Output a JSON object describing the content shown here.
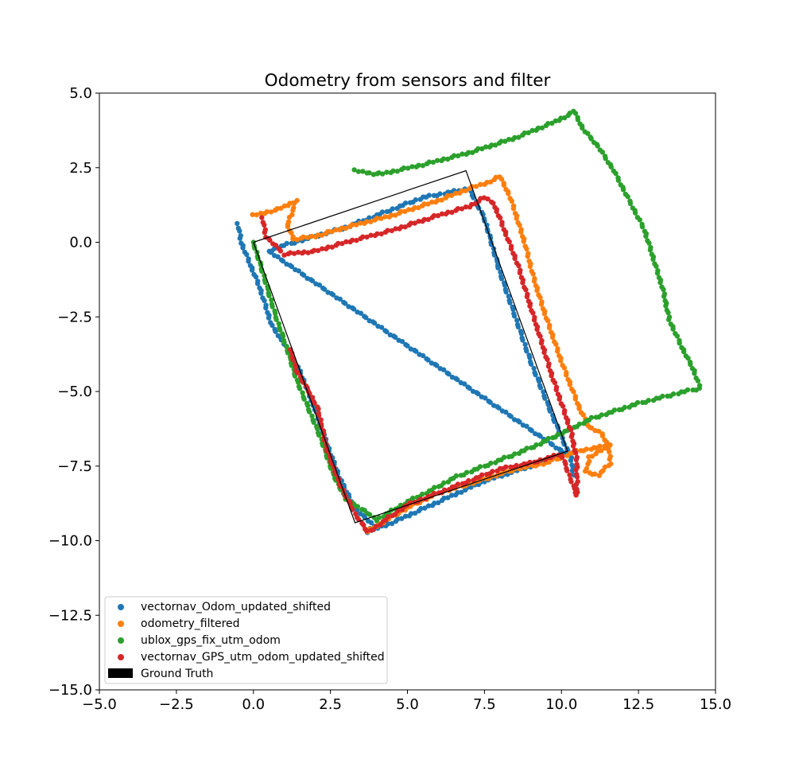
{
  "chart_data": {
    "type": "scatter",
    "title": "Odometry from sensors and filter",
    "xlabel": "",
    "ylabel": "",
    "xlim": [
      -5.0,
      15.0
    ],
    "ylim": [
      -15.0,
      5.0
    ],
    "x_ticks": [
      "−5.0",
      "−2.5",
      "0.0",
      "2.5",
      "5.0",
      "7.5",
      "10.0",
      "12.5",
      "15.0"
    ],
    "y_ticks": [
      "5.0",
      "2.5",
      "0.0",
      "−2.5",
      "−5.0",
      "−7.5",
      "−10.0",
      "−12.5",
      "−15.0"
    ],
    "grid": false,
    "legend_position": "lower-left",
    "series": [
      {
        "name": "vectornav_Odom_updated_shifted",
        "color": "#1f77b4",
        "waypoints": [
          [
            -0.5,
            0.6
          ],
          [
            -0.4,
            0.0
          ],
          [
            0.2,
            -1.5
          ],
          [
            0.6,
            -2.8
          ],
          [
            1.0,
            -3.4
          ],
          [
            1.5,
            -4.3
          ],
          [
            2.0,
            -5.6
          ],
          [
            2.4,
            -6.8
          ],
          [
            2.8,
            -7.9
          ],
          [
            3.3,
            -8.9
          ],
          [
            3.9,
            -9.5
          ],
          [
            3.7,
            -9.7
          ],
          [
            4.5,
            -9.4
          ],
          [
            6.0,
            -8.7
          ],
          [
            7.5,
            -8.0
          ],
          [
            9.0,
            -7.5
          ],
          [
            10.0,
            -7.1
          ],
          [
            10.2,
            -7.0
          ],
          [
            9.7,
            -5.8
          ],
          [
            9.0,
            -4.0
          ],
          [
            8.5,
            -2.5
          ],
          [
            8.0,
            -1.0
          ],
          [
            7.5,
            0.8
          ],
          [
            7.0,
            1.8
          ],
          [
            5.5,
            1.5
          ],
          [
            4.0,
            0.9
          ],
          [
            3.0,
            0.5
          ],
          [
            2.0,
            0.2
          ],
          [
            1.0,
            -0.1
          ],
          [
            0.5,
            -0.3
          ],
          [
            10.3,
            -7.2
          ],
          [
            10.4,
            -7.8
          ]
        ]
      },
      {
        "name": "odometry_filtered",
        "color": "#ff7f0e",
        "waypoints": [
          [
            0.0,
            0.9
          ],
          [
            0.8,
            1.1
          ],
          [
            1.4,
            1.4
          ],
          [
            1.1,
            0.6
          ],
          [
            1.3,
            0.1
          ],
          [
            2.0,
            0.2
          ],
          [
            3.0,
            0.5
          ],
          [
            4.5,
            0.9
          ],
          [
            6.0,
            1.4
          ],
          [
            7.0,
            1.8
          ],
          [
            7.6,
            2.0
          ],
          [
            8.0,
            2.2
          ],
          [
            8.3,
            1.6
          ],
          [
            8.5,
            1.0
          ],
          [
            8.8,
            0.0
          ],
          [
            9.1,
            -1.2
          ],
          [
            9.4,
            -2.2
          ],
          [
            9.7,
            -3.1
          ],
          [
            10.0,
            -4.0
          ],
          [
            10.3,
            -4.8
          ],
          [
            10.6,
            -5.6
          ],
          [
            10.9,
            -6.2
          ],
          [
            11.3,
            -6.4
          ],
          [
            11.5,
            -6.8
          ],
          [
            11.6,
            -7.4
          ],
          [
            11.2,
            -7.8
          ],
          [
            10.8,
            -7.7
          ],
          [
            10.9,
            -7.2
          ],
          [
            11.6,
            -6.8
          ],
          [
            10.5,
            -7.0
          ],
          [
            9.5,
            -7.4
          ],
          [
            8.5,
            -7.6
          ],
          [
            7.0,
            -8.1
          ],
          [
            6.0,
            -8.4
          ],
          [
            5.0,
            -8.9
          ],
          [
            4.0,
            -9.5
          ],
          [
            3.7,
            -9.7
          ]
        ]
      },
      {
        "name": "ublox_gps_fix_utm_odom",
        "color": "#2ca02c",
        "waypoints": [
          [
            3.3,
            2.4
          ],
          [
            3.9,
            2.3
          ],
          [
            4.2,
            2.3
          ],
          [
            5.5,
            2.6
          ],
          [
            7.0,
            3.0
          ],
          [
            8.5,
            3.5
          ],
          [
            9.7,
            4.0
          ],
          [
            10.3,
            4.3
          ],
          [
            10.4,
            4.4
          ],
          [
            10.7,
            3.8
          ],
          [
            11.2,
            3.2
          ],
          [
            11.7,
            2.4
          ],
          [
            12.2,
            1.4
          ],
          [
            12.7,
            0.4
          ],
          [
            13.0,
            -0.6
          ],
          [
            13.3,
            -1.6
          ],
          [
            13.5,
            -2.6
          ],
          [
            13.9,
            -3.5
          ],
          [
            14.3,
            -4.3
          ],
          [
            14.5,
            -4.9
          ],
          [
            14.0,
            -5.0
          ],
          [
            12.5,
            -5.4
          ],
          [
            11.0,
            -5.9
          ],
          [
            10.2,
            -6.3
          ],
          [
            9.2,
            -6.8
          ],
          [
            8.5,
            -7.1
          ],
          [
            7.5,
            -7.5
          ],
          [
            6.5,
            -7.9
          ],
          [
            5.8,
            -8.3
          ],
          [
            5.0,
            -8.7
          ],
          [
            4.5,
            -9.0
          ],
          [
            4.0,
            -9.3
          ],
          [
            3.6,
            -9.0
          ],
          [
            3.0,
            -8.6
          ],
          [
            2.6,
            -7.8
          ],
          [
            2.2,
            -6.6
          ],
          [
            1.8,
            -5.6
          ],
          [
            1.4,
            -4.6
          ],
          [
            1.1,
            -3.6
          ],
          [
            0.7,
            -2.4
          ],
          [
            0.3,
            -1.0
          ],
          [
            0.0,
            0.0
          ]
        ]
      },
      {
        "name": "vectornav_GPS_utm_odom_updated_shifted",
        "color": "#d62728",
        "waypoints": [
          [
            0.3,
            0.8
          ],
          [
            0.4,
            0.2
          ],
          [
            0.8,
            -0.2
          ],
          [
            1.0,
            -0.4
          ],
          [
            2.0,
            -0.3
          ],
          [
            3.0,
            0.0
          ],
          [
            4.5,
            0.4
          ],
          [
            6.0,
            0.9
          ],
          [
            7.0,
            1.2
          ],
          [
            7.5,
            1.5
          ],
          [
            7.8,
            1.3
          ],
          [
            8.0,
            0.8
          ],
          [
            8.3,
            0.0
          ],
          [
            8.6,
            -0.8
          ],
          [
            8.8,
            -1.5
          ],
          [
            9.1,
            -2.5
          ],
          [
            9.4,
            -3.5
          ],
          [
            9.7,
            -4.5
          ],
          [
            10.0,
            -5.4
          ],
          [
            10.3,
            -6.3
          ],
          [
            10.5,
            -7.3
          ],
          [
            10.5,
            -8.0
          ],
          [
            10.5,
            -8.5
          ],
          [
            10.0,
            -7.1
          ],
          [
            9.0,
            -7.4
          ],
          [
            8.0,
            -7.6
          ],
          [
            7.0,
            -8.0
          ],
          [
            6.0,
            -8.4
          ],
          [
            5.0,
            -8.8
          ],
          [
            4.3,
            -9.3
          ],
          [
            3.9,
            -9.6
          ],
          [
            3.7,
            -9.7
          ],
          [
            3.3,
            -9.1
          ],
          [
            2.8,
            -8.1
          ],
          [
            2.4,
            -7.0
          ],
          [
            2.1,
            -5.6
          ],
          [
            1.8,
            -5.0
          ],
          [
            1.4,
            -4.3
          ],
          [
            1.2,
            -3.6
          ]
        ]
      }
    ],
    "ground_truth": {
      "name": "Ground Truth",
      "color": "#000000",
      "corners": [
        [
          0.0,
          0.0
        ],
        [
          6.9,
          2.4
        ],
        [
          10.2,
          -7.0
        ],
        [
          3.3,
          -9.4
        ],
        [
          0.0,
          0.0
        ]
      ]
    }
  }
}
